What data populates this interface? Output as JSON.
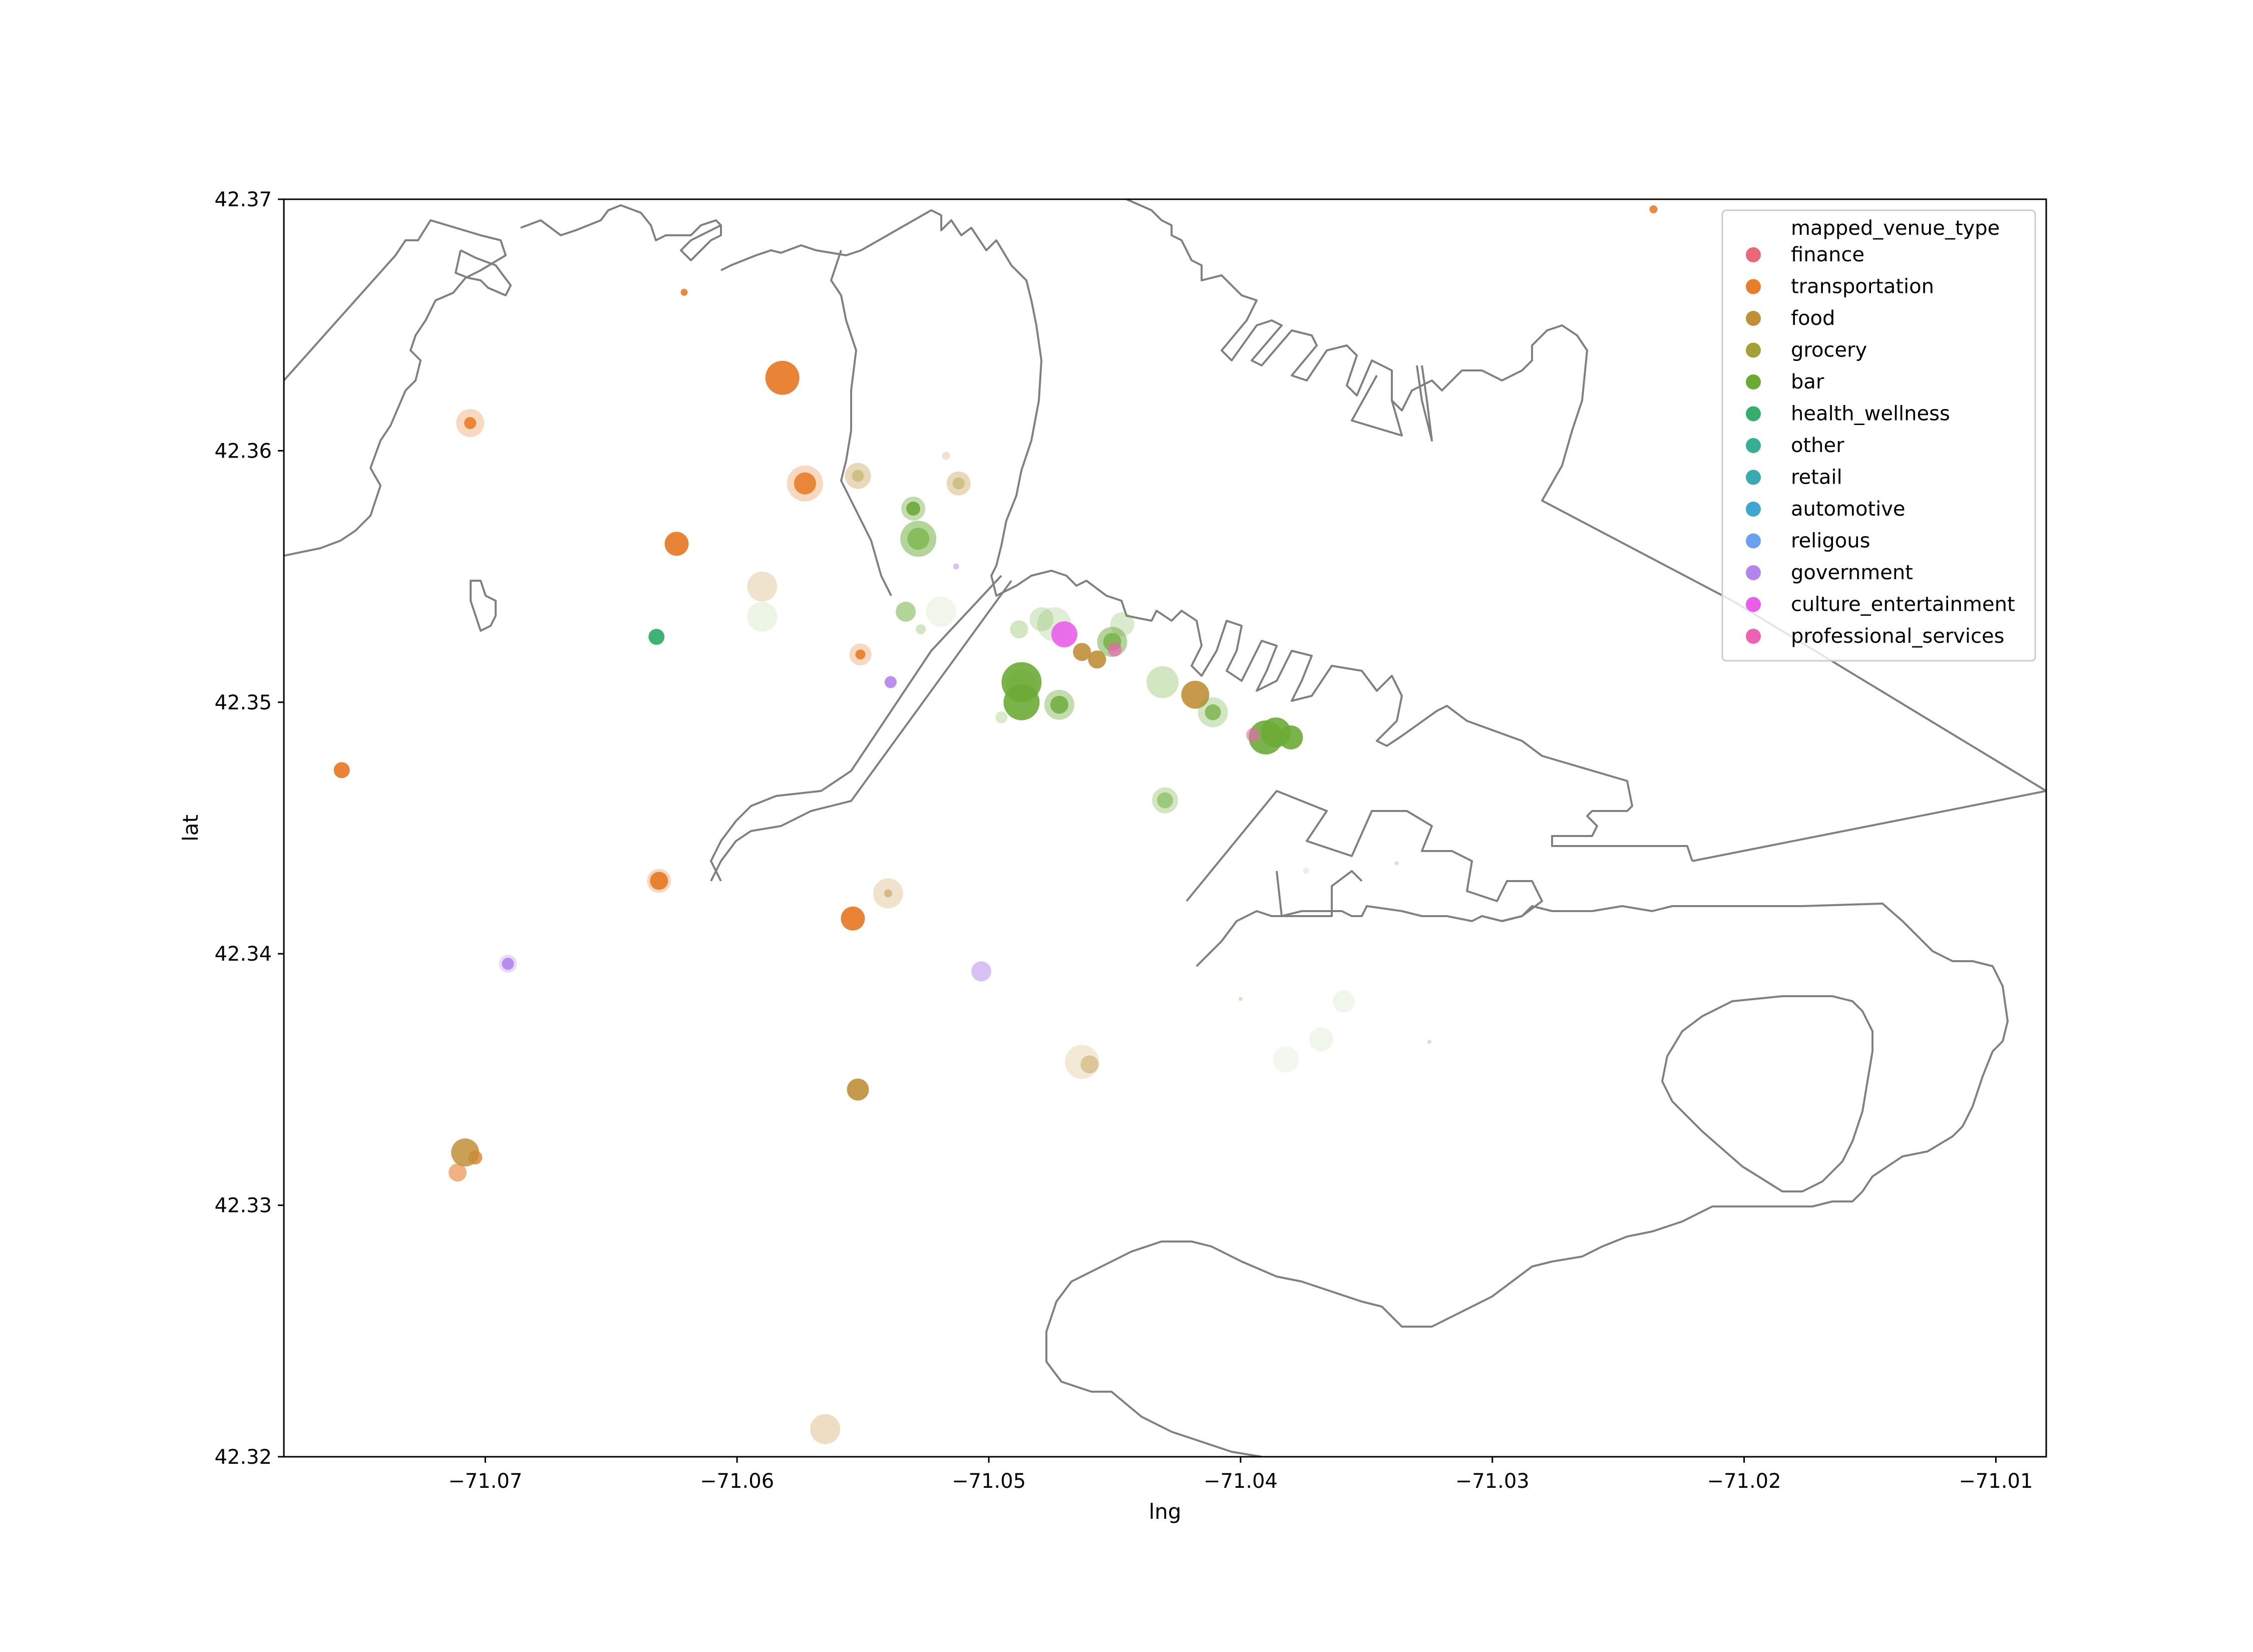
{
  "chart_data": {
    "type": "scatter",
    "title": "",
    "xlabel": "lng",
    "ylabel": "lat",
    "xlim": [
      -71.078,
      -71.008
    ],
    "ylim": [
      42.32,
      42.37
    ],
    "xticks": [
      -71.07,
      -71.06,
      -71.05,
      -71.04,
      -71.03,
      -71.02,
      -71.01
    ],
    "xtick_labels": [
      "−71.07",
      "−71.06",
      "−71.05",
      "−71.04",
      "−71.03",
      "−71.02",
      "−71.01"
    ],
    "yticks": [
      42.32,
      42.33,
      42.34,
      42.35,
      42.36,
      42.37
    ],
    "ytick_labels": [
      "42.32",
      "42.33",
      "42.34",
      "42.35",
      "42.36",
      "42.37"
    ],
    "grid": false,
    "legend": {
      "title": "mapped_venue_type",
      "placement": "top-right",
      "entries": [
        {
          "label": "finance",
          "color": "#e8687a"
        },
        {
          "label": "transportation",
          "color": "#e87d2b"
        },
        {
          "label": "food",
          "color": "#c08f38"
        },
        {
          "label": "grocery",
          "color": "#a3a036"
        },
        {
          "label": "bar",
          "color": "#6aab35"
        },
        {
          "label": "health_wellness",
          "color": "#35ae6d"
        },
        {
          "label": "other",
          "color": "#3aad95"
        },
        {
          "label": "retail",
          "color": "#38aab0"
        },
        {
          "label": "automotive",
          "color": "#3fa6d0"
        },
        {
          "label": "religous",
          "color": "#6aa0f0"
        },
        {
          "label": "government",
          "color": "#b384ec"
        },
        {
          "label": "culture_entertainment",
          "color": "#e95ee8"
        },
        {
          "label": "professional_services",
          "color": "#ee62b6"
        }
      ]
    },
    "series": [
      {
        "category": "transportation",
        "points": [
          {
            "x": -71.0706,
            "y": 42.3611,
            "s": 12,
            "a": 0.9
          },
          {
            "x": -71.0706,
            "y": 42.3611,
            "s": 28,
            "a": 0.3
          },
          {
            "x": -71.0582,
            "y": 42.3629,
            "s": 34,
            "a": 0.95
          },
          {
            "x": -71.0573,
            "y": 42.3587,
            "s": 22,
            "a": 0.9
          },
          {
            "x": -71.0573,
            "y": 42.3587,
            "s": 36,
            "a": 0.3
          },
          {
            "x": -71.0624,
            "y": 42.3563,
            "s": 24,
            "a": 0.95
          },
          {
            "x": -71.0621,
            "y": 42.3663,
            "s": 7,
            "a": 0.9
          },
          {
            "x": -71.0236,
            "y": 42.3696,
            "s": 8,
            "a": 0.9
          },
          {
            "x": -71.0551,
            "y": 42.3519,
            "s": 10,
            "a": 0.9
          },
          {
            "x": -71.0551,
            "y": 42.3519,
            "s": 22,
            "a": 0.3
          },
          {
            "x": -71.0757,
            "y": 42.3473,
            "s": 16,
            "a": 0.95
          },
          {
            "x": -71.0631,
            "y": 42.3429,
            "s": 18,
            "a": 0.95
          },
          {
            "x": -71.0631,
            "y": 42.3429,
            "s": 24,
            "a": 0.3
          },
          {
            "x": -71.0554,
            "y": 42.3414,
            "s": 24,
            "a": 0.95
          },
          {
            "x": -71.0711,
            "y": 42.3313,
            "s": 18,
            "a": 0.6
          },
          {
            "x": -71.0704,
            "y": 42.3319,
            "s": 14,
            "a": 0.8
          }
        ]
      },
      {
        "category": "food",
        "points": [
          {
            "x": -71.0552,
            "y": 42.359,
            "s": 26,
            "a": 0.35
          },
          {
            "x": -71.0512,
            "y": 42.3587,
            "s": 24,
            "a": 0.35
          },
          {
            "x": -71.059,
            "y": 42.3546,
            "s": 30,
            "a": 0.25
          },
          {
            "x": -71.0517,
            "y": 42.3598,
            "s": 8,
            "a": 0.25
          },
          {
            "x": -71.0463,
            "y": 42.352,
            "s": 18,
            "a": 0.9
          },
          {
            "x": -71.0457,
            "y": 42.3517,
            "s": 18,
            "a": 0.9
          },
          {
            "x": -71.0418,
            "y": 42.3503,
            "s": 28,
            "a": 0.9
          },
          {
            "x": -71.0487,
            "y": 42.3507,
            "s": 30,
            "a": 0.3
          },
          {
            "x": -71.054,
            "y": 42.3424,
            "s": 30,
            "a": 0.25
          },
          {
            "x": -71.054,
            "y": 42.3424,
            "s": 8,
            "a": 0.5
          },
          {
            "x": -71.0552,
            "y": 42.3346,
            "s": 22,
            "a": 0.9
          },
          {
            "x": -71.0463,
            "y": 42.3357,
            "s": 34,
            "a": 0.2
          },
          {
            "x": -71.046,
            "y": 42.3356,
            "s": 18,
            "a": 0.4
          },
          {
            "x": -71.0708,
            "y": 42.3321,
            "s": 28,
            "a": 0.85
          },
          {
            "x": -71.0565,
            "y": 42.3211,
            "s": 30,
            "a": 0.3
          }
        ]
      },
      {
        "category": "grocery",
        "points": [
          {
            "x": -71.0552,
            "y": 42.359,
            "s": 12,
            "a": 0.4
          },
          {
            "x": -71.0512,
            "y": 42.3587,
            "s": 12,
            "a": 0.4
          }
        ]
      },
      {
        "category": "bar",
        "points": [
          {
            "x": -71.053,
            "y": 42.3577,
            "s": 24,
            "a": 0.4
          },
          {
            "x": -71.053,
            "y": 42.3577,
            "s": 14,
            "a": 0.9
          },
          {
            "x": -71.0528,
            "y": 42.3565,
            "s": 36,
            "a": 0.5
          },
          {
            "x": -71.0528,
            "y": 42.3565,
            "s": 22,
            "a": 0.6
          },
          {
            "x": -71.0533,
            "y": 42.3536,
            "s": 20,
            "a": 0.5
          },
          {
            "x": -71.0527,
            "y": 42.3529,
            "s": 10,
            "a": 0.3
          },
          {
            "x": -71.059,
            "y": 42.3534,
            "s": 30,
            "a": 0.12
          },
          {
            "x": -71.0519,
            "y": 42.3536,
            "s": 30,
            "a": 0.1
          },
          {
            "x": -71.0488,
            "y": 42.3529,
            "s": 18,
            "a": 0.3
          },
          {
            "x": -71.0474,
            "y": 42.3531,
            "s": 34,
            "a": 0.2
          },
          {
            "x": -71.0479,
            "y": 42.3533,
            "s": 24,
            "a": 0.25
          },
          {
            "x": -71.0447,
            "y": 42.3531,
            "s": 24,
            "a": 0.25
          },
          {
            "x": -71.0451,
            "y": 42.3524,
            "s": 30,
            "a": 0.5
          },
          {
            "x": -71.0451,
            "y": 42.3524,
            "s": 18,
            "a": 0.7
          },
          {
            "x": -71.0487,
            "y": 42.3508,
            "s": 40,
            "a": 0.9
          },
          {
            "x": -71.0487,
            "y": 42.35,
            "s": 36,
            "a": 0.9
          },
          {
            "x": -71.0472,
            "y": 42.3499,
            "s": 30,
            "a": 0.4
          },
          {
            "x": -71.0472,
            "y": 42.3499,
            "s": 18,
            "a": 0.8
          },
          {
            "x": -71.0431,
            "y": 42.3508,
            "s": 32,
            "a": 0.3
          },
          {
            "x": -71.0411,
            "y": 42.3496,
            "s": 30,
            "a": 0.3
          },
          {
            "x": -71.0411,
            "y": 42.3496,
            "s": 16,
            "a": 0.7
          },
          {
            "x": -71.0495,
            "y": 42.3494,
            "s": 12,
            "a": 0.25
          },
          {
            "x": -71.039,
            "y": 42.3486,
            "s": 34,
            "a": 0.9
          },
          {
            "x": -71.0386,
            "y": 42.3488,
            "s": 30,
            "a": 0.9
          },
          {
            "x": -71.038,
            "y": 42.3486,
            "s": 24,
            "a": 0.9
          },
          {
            "x": -71.043,
            "y": 42.3461,
            "s": 26,
            "a": 0.3
          },
          {
            "x": -71.043,
            "y": 42.3461,
            "s": 16,
            "a": 0.5
          },
          {
            "x": -71.0359,
            "y": 42.3381,
            "s": 22,
            "a": 0.1
          },
          {
            "x": -71.0368,
            "y": 42.3366,
            "s": 24,
            "a": 0.1
          },
          {
            "x": -71.0382,
            "y": 42.3358,
            "s": 26,
            "a": 0.08
          },
          {
            "x": -71.0374,
            "y": 42.3433,
            "s": 6,
            "a": 0.15
          },
          {
            "x": -71.0325,
            "y": 42.3365,
            "s": 4,
            "a": 0.3
          },
          {
            "x": -71.0338,
            "y": 42.3436,
            "s": 4,
            "a": 0.3
          },
          {
            "x": -71.04,
            "y": 42.3382,
            "s": 4,
            "a": 0.3
          }
        ]
      },
      {
        "category": "health_wellness",
        "points": [
          {
            "x": -71.0632,
            "y": 42.3526,
            "s": 16,
            "a": 0.95
          }
        ]
      },
      {
        "category": "government",
        "points": [
          {
            "x": -71.0539,
            "y": 42.3508,
            "s": 12,
            "a": 0.9
          },
          {
            "x": -71.0691,
            "y": 42.3396,
            "s": 12,
            "a": 0.9
          },
          {
            "x": -71.0691,
            "y": 42.3396,
            "s": 18,
            "a": 0.3
          },
          {
            "x": -71.0503,
            "y": 42.3393,
            "s": 20,
            "a": 0.5
          },
          {
            "x": -71.0513,
            "y": 42.3554,
            "s": 6,
            "a": 0.5
          }
        ]
      },
      {
        "category": "culture_entertainment",
        "points": [
          {
            "x": -71.047,
            "y": 42.3527,
            "s": 26,
            "a": 0.9
          }
        ]
      },
      {
        "category": "professional_services",
        "points": [
          {
            "x": -71.045,
            "y": 42.3521,
            "s": 14,
            "a": 0.7
          },
          {
            "x": -71.0395,
            "y": 42.3487,
            "s": 14,
            "a": 0.6
          }
        ]
      }
    ]
  }
}
